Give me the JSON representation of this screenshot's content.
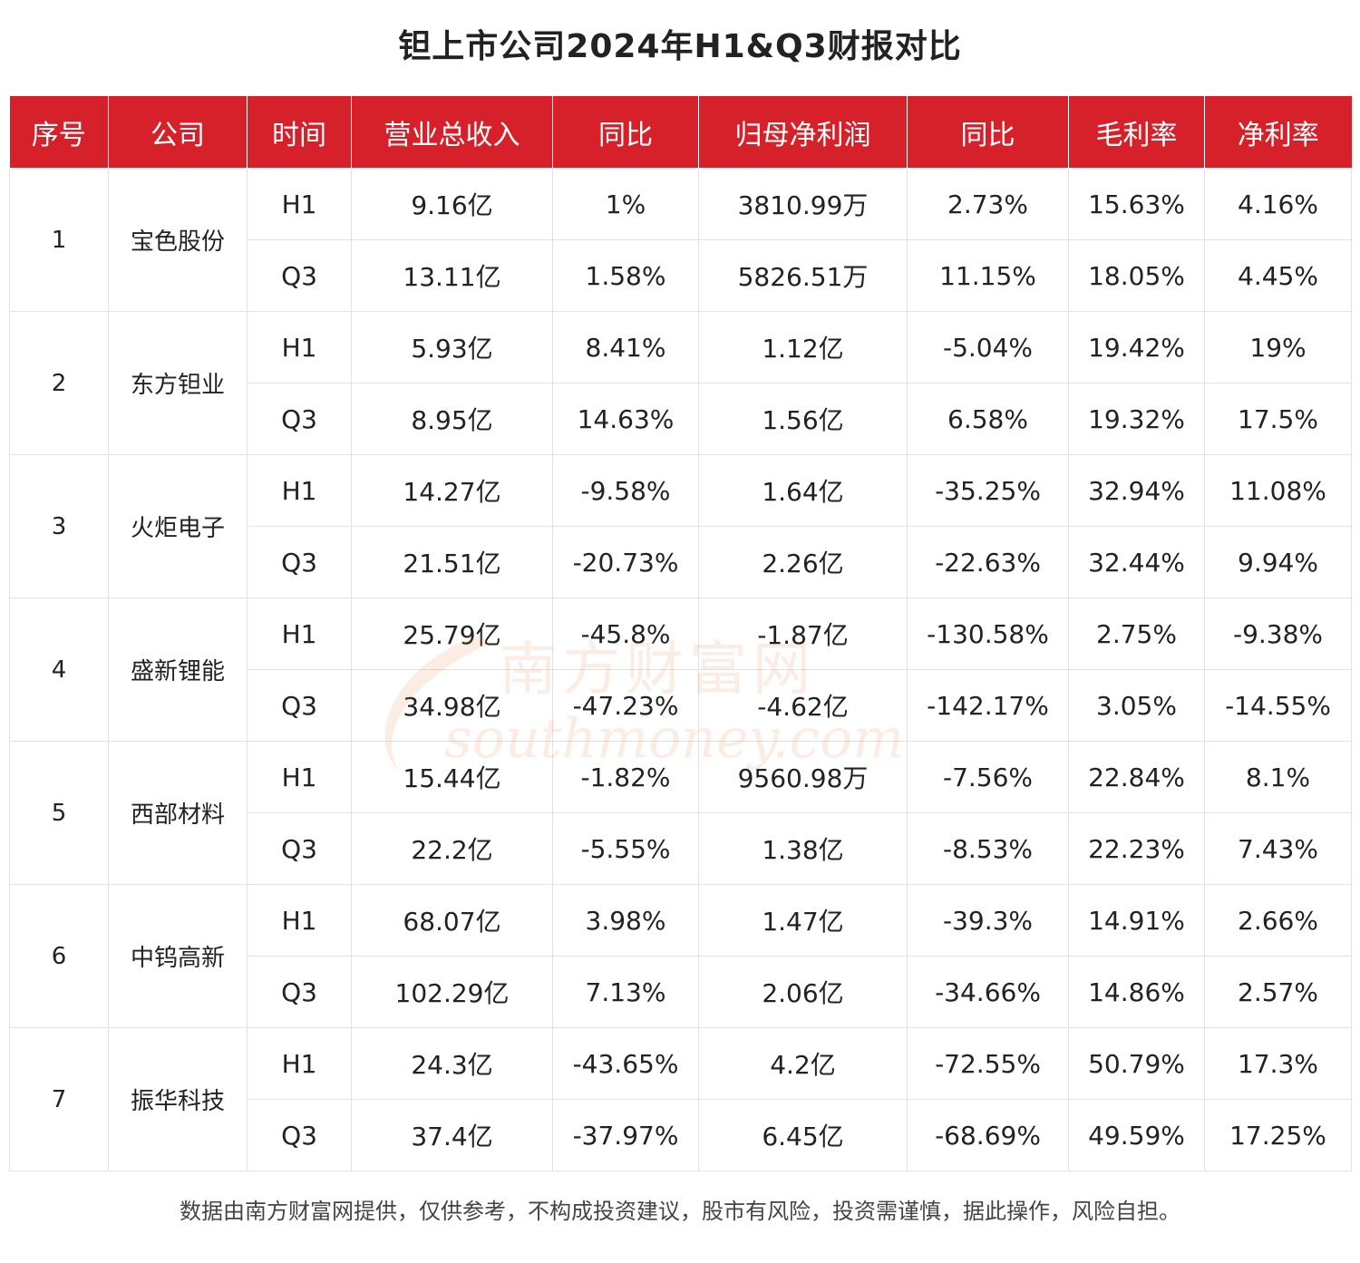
{
  "title": "钽上市公司2024年H1&Q3财报对比",
  "headers": [
    "序号",
    "公司",
    "时间",
    "营业总收入",
    "同比",
    "归母净利润",
    "同比",
    "毛利率",
    "净利率"
  ],
  "companies": [
    {
      "seq": "1",
      "name": "宝色股份",
      "rows": [
        {
          "period": "H1",
          "revenue": "9.16亿",
          "revenue_yoy": "1%",
          "net_profit": "3810.99万",
          "profit_yoy": "2.73%",
          "gross_margin": "15.63%",
          "net_margin": "4.16%"
        },
        {
          "period": "Q3",
          "revenue": "13.11亿",
          "revenue_yoy": "1.58%",
          "net_profit": "5826.51万",
          "profit_yoy": "11.15%",
          "gross_margin": "18.05%",
          "net_margin": "4.45%"
        }
      ]
    },
    {
      "seq": "2",
      "name": "东方钽业",
      "rows": [
        {
          "period": "H1",
          "revenue": "5.93亿",
          "revenue_yoy": "8.41%",
          "net_profit": "1.12亿",
          "profit_yoy": "-5.04%",
          "gross_margin": "19.42%",
          "net_margin": "19%"
        },
        {
          "period": "Q3",
          "revenue": "8.95亿",
          "revenue_yoy": "14.63%",
          "net_profit": "1.56亿",
          "profit_yoy": "6.58%",
          "gross_margin": "19.32%",
          "net_margin": "17.5%"
        }
      ]
    },
    {
      "seq": "3",
      "name": "火炬电子",
      "rows": [
        {
          "period": "H1",
          "revenue": "14.27亿",
          "revenue_yoy": "-9.58%",
          "net_profit": "1.64亿",
          "profit_yoy": "-35.25%",
          "gross_margin": "32.94%",
          "net_margin": "11.08%"
        },
        {
          "period": "Q3",
          "revenue": "21.51亿",
          "revenue_yoy": "-20.73%",
          "net_profit": "2.26亿",
          "profit_yoy": "-22.63%",
          "gross_margin": "32.44%",
          "net_margin": "9.94%"
        }
      ]
    },
    {
      "seq": "4",
      "name": "盛新锂能",
      "rows": [
        {
          "period": "H1",
          "revenue": "25.79亿",
          "revenue_yoy": "-45.8%",
          "net_profit": "-1.87亿",
          "profit_yoy": "-130.58%",
          "gross_margin": "2.75%",
          "net_margin": "-9.38%"
        },
        {
          "period": "Q3",
          "revenue": "34.98亿",
          "revenue_yoy": "-47.23%",
          "net_profit": "-4.62亿",
          "profit_yoy": "-142.17%",
          "gross_margin": "3.05%",
          "net_margin": "-14.55%"
        }
      ]
    },
    {
      "seq": "5",
      "name": "西部材料",
      "rows": [
        {
          "period": "H1",
          "revenue": "15.44亿",
          "revenue_yoy": "-1.82%",
          "net_profit": "9560.98万",
          "profit_yoy": "-7.56%",
          "gross_margin": "22.84%",
          "net_margin": "8.1%"
        },
        {
          "period": "Q3",
          "revenue": "22.2亿",
          "revenue_yoy": "-5.55%",
          "net_profit": "1.38亿",
          "profit_yoy": "-8.53%",
          "gross_margin": "22.23%",
          "net_margin": "7.43%"
        }
      ]
    },
    {
      "seq": "6",
      "name": "中钨高新",
      "rows": [
        {
          "period": "H1",
          "revenue": "68.07亿",
          "revenue_yoy": "3.98%",
          "net_profit": "1.47亿",
          "profit_yoy": "-39.3%",
          "gross_margin": "14.91%",
          "net_margin": "2.66%"
        },
        {
          "period": "Q3",
          "revenue": "102.29亿",
          "revenue_yoy": "7.13%",
          "net_profit": "2.06亿",
          "profit_yoy": "-34.66%",
          "gross_margin": "14.86%",
          "net_margin": "2.57%"
        }
      ]
    },
    {
      "seq": "7",
      "name": "振华科技",
      "rows": [
        {
          "period": "H1",
          "revenue": "24.3亿",
          "revenue_yoy": "-43.65%",
          "net_profit": "4.2亿",
          "profit_yoy": "-72.55%",
          "gross_margin": "50.79%",
          "net_margin": "17.3%"
        },
        {
          "period": "Q3",
          "revenue": "37.4亿",
          "revenue_yoy": "-37.97%",
          "net_profit": "6.45亿",
          "profit_yoy": "-68.69%",
          "gross_margin": "49.59%",
          "net_margin": "17.25%"
        }
      ]
    }
  ],
  "watermark": {
    "text_cn": "南方财富网",
    "text_en": "southmoney.com",
    "color": "#e8743b"
  },
  "colors": {
    "header_bg": "#d7212a",
    "header_text": "#ffffff",
    "border": "#e2e2e2"
  },
  "disclaimer": "数据由南方财富网提供，仅供参考，不构成投资建议，股市有风险，投资需谨慎，据此操作，风险自担。"
}
